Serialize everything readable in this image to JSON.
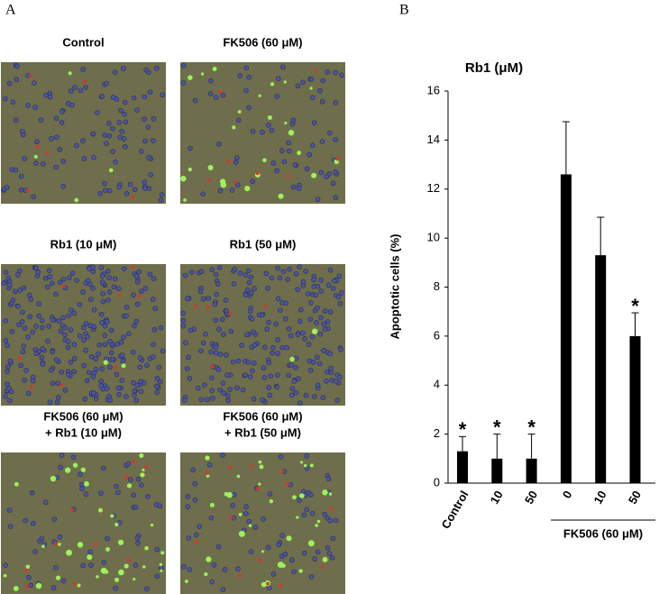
{
  "panel_a": {
    "label": "A",
    "images": [
      {
        "title": [
          "Control"
        ]
      },
      {
        "title": [
          "FK506 (60 μM)"
        ]
      },
      {
        "title": [
          "Rb1 (10 μM)"
        ]
      },
      {
        "title": [
          "Rb1 (50 μM)"
        ]
      },
      {
        "title": [
          "FK506 (60 μM)",
          "+ Rb1 (10 μM)"
        ]
      },
      {
        "title": [
          "FK506 (60 μM)",
          "+ Rb1 (50 μM)"
        ]
      }
    ]
  },
  "panel_b": {
    "label": "B"
  },
  "chart_data": {
    "type": "bar",
    "title": "Rb1 (μM)",
    "y_label": "Apoptotic cells (%)",
    "categories": [
      "Control",
      "10",
      "50",
      "0",
      "10",
      "50"
    ],
    "values": [
      1.3,
      1.0,
      1.0,
      12.6,
      9.3,
      6.0
    ],
    "errors": [
      0.6,
      1.0,
      1.0,
      2.15,
      1.55,
      0.95
    ],
    "significance": [
      "*",
      "*",
      "*",
      null,
      null,
      "*"
    ],
    "group_label": "FK506 (60 μM)",
    "color": "#000000",
    "ylim": [
      0,
      16
    ],
    "yticks": [
      0,
      2,
      4,
      6,
      8,
      10,
      12,
      14,
      16
    ]
  }
}
